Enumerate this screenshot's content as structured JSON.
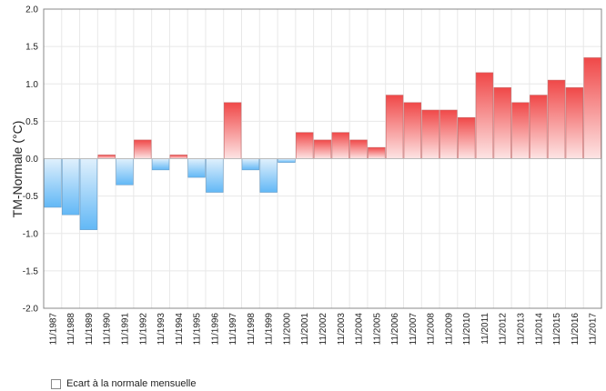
{
  "chart_data": {
    "type": "bar",
    "title": "",
    "ylabel": "TM-Normale (°C)",
    "xlabel": "",
    "ylim": [
      -2.0,
      2.0
    ],
    "yticks": [
      "-2.0",
      "-1.5",
      "-1.0",
      "-0.5",
      "0.0",
      "0.5",
      "1.0",
      "1.5",
      "2.0"
    ],
    "grid": true,
    "legend_position": "bottom-left",
    "colors": {
      "positive_top": "#f04848",
      "positive_bottom": "#fde4e4",
      "negative_top": "#e0f0fc",
      "negative_bottom": "#62b8f6",
      "grid": "#e8e8e8",
      "axis": "#888888"
    },
    "categories": [
      "11/1987",
      "11/1988",
      "11/1989",
      "11/1990",
      "11/1991",
      "11/1992",
      "11/1993",
      "11/1994",
      "11/1995",
      "11/1996",
      "11/1997",
      "11/1998",
      "11/1999",
      "11/2000",
      "11/2001",
      "11/2002",
      "11/2003",
      "11/2004",
      "11/2005",
      "11/2006",
      "11/2007",
      "11/2008",
      "11/2009",
      "11/2010",
      "11/2011",
      "11/2012",
      "11/2013",
      "11/2014",
      "11/2015",
      "11/2016",
      "11/2017"
    ],
    "series": [
      {
        "name": "Ecart à la normale mensuelle",
        "values": [
          -0.65,
          -0.75,
          -0.95,
          0.05,
          -0.35,
          0.25,
          -0.15,
          0.05,
          -0.25,
          -0.45,
          0.75,
          -0.15,
          -0.45,
          -0.05,
          0.35,
          0.25,
          0.35,
          0.25,
          0.15,
          0.85,
          0.75,
          0.65,
          0.65,
          0.55,
          1.15,
          0.95,
          0.75,
          0.85,
          1.05,
          0.95,
          1.35
        ]
      }
    ]
  }
}
